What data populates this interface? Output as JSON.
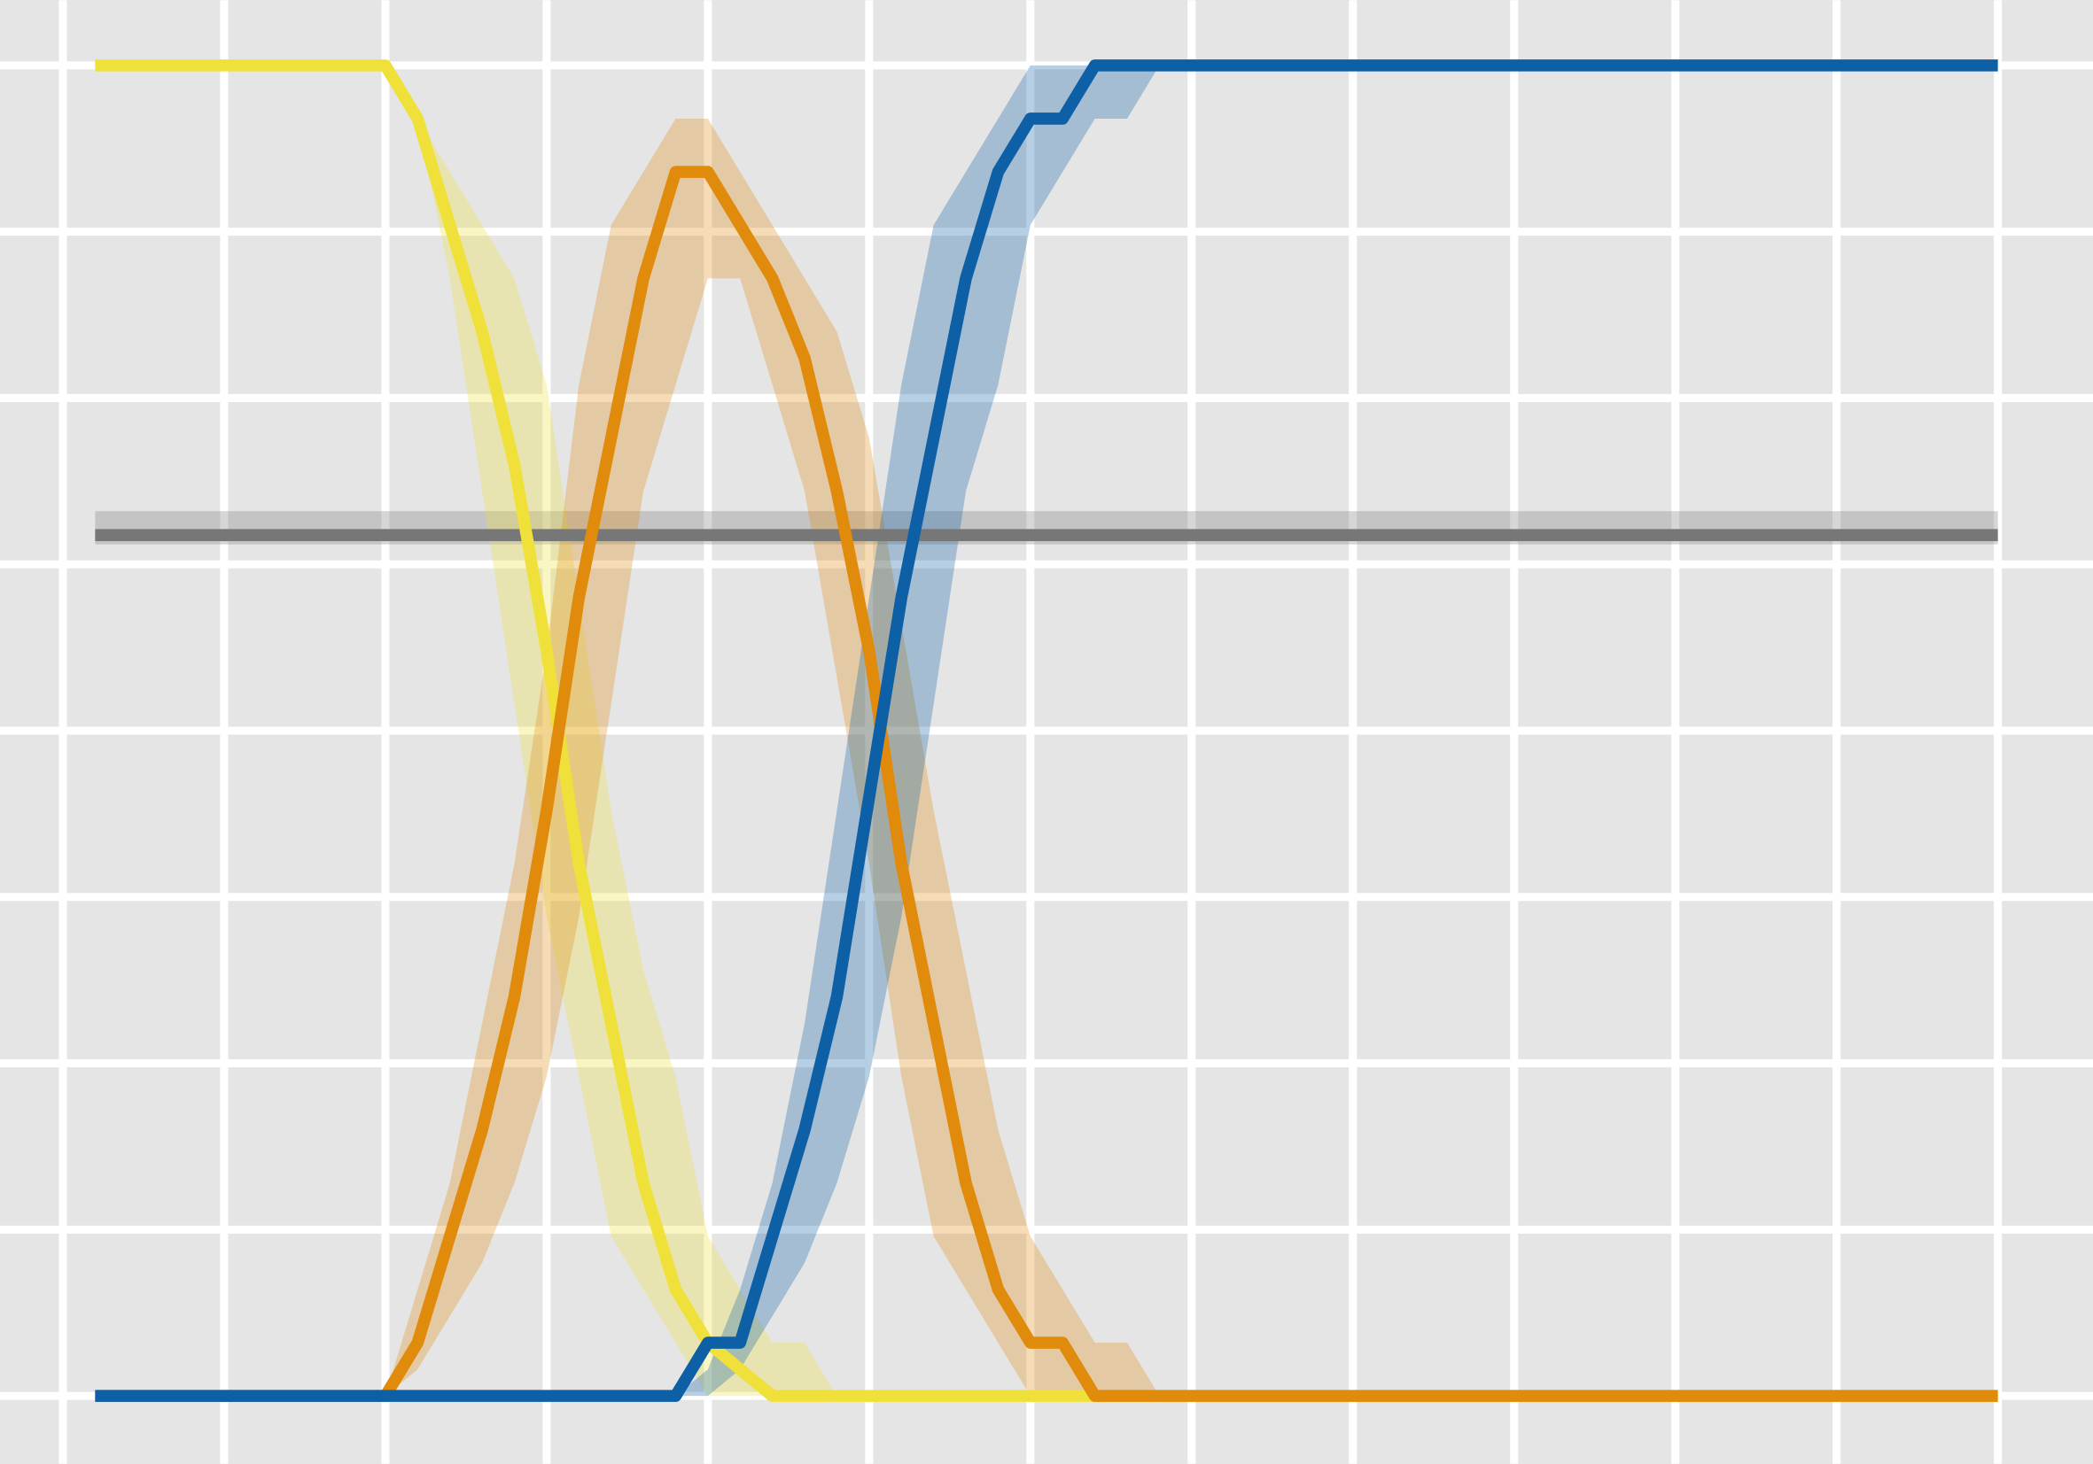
{
  "chart_data": {
    "type": "line",
    "grid": true,
    "background": "#e5e5e5",
    "xlim": [
      -0.39,
      12.59
    ],
    "ylim": [
      -0.051,
      1.049
    ],
    "xticks": [
      0,
      1,
      2,
      3,
      4,
      5,
      6,
      7,
      8,
      9,
      10,
      11,
      12
    ],
    "yticks": [
      0,
      0.125,
      0.25,
      0.375,
      0.5,
      0.625,
      0.75,
      0.875,
      1
    ],
    "x": [
      0.2,
      2.0,
      2.2,
      2.4,
      2.6,
      2.8,
      3.0,
      3.2,
      3.4,
      3.6,
      3.8,
      4.0,
      4.2,
      4.4,
      4.6,
      4.8,
      5.0,
      5.2,
      5.4,
      5.6,
      5.8,
      6.0,
      6.2,
      6.4,
      6.6,
      6.8,
      12
    ],
    "series": [
      {
        "color": "#777777",
        "values": [
          0.647,
          0.647,
          0.647,
          0.647,
          0.647,
          0.647,
          0.647,
          0.647,
          0.647,
          0.647,
          0.647,
          0.647,
          0.647,
          0.647,
          0.647,
          0.647,
          0.647,
          0.647,
          0.647,
          0.647,
          0.647,
          0.647,
          0.647,
          0.647,
          0.647,
          0.647,
          0.647
        ],
        "upper": [
          0.665,
          0.665,
          0.665,
          0.665,
          0.665,
          0.665,
          0.665,
          0.665,
          0.665,
          0.665,
          0.665,
          0.665,
          0.665,
          0.665,
          0.665,
          0.665,
          0.665,
          0.665,
          0.665,
          0.665,
          0.665,
          0.665,
          0.665,
          0.665,
          0.665,
          0.665,
          0.665
        ],
        "lower": [
          0.64,
          0.64,
          0.64,
          0.64,
          0.64,
          0.64,
          0.64,
          0.64,
          0.64,
          0.64,
          0.64,
          0.64,
          0.64,
          0.64,
          0.64,
          0.64,
          0.64,
          0.64,
          0.64,
          0.64,
          0.64,
          0.64,
          0.64,
          0.64,
          0.64,
          0.64,
          0.64
        ]
      },
      {
        "color": "#efe03a",
        "values": [
          1,
          1,
          0.96,
          0.88,
          0.8,
          0.7,
          0.56,
          0.4,
          0.28,
          0.16,
          0.08,
          0.04,
          0.02,
          0,
          0,
          0,
          0,
          0,
          0,
          0,
          0,
          0,
          0,
          0,
          0,
          0,
          0
        ],
        "upper": [
          1,
          1,
          0.96,
          0.92,
          0.88,
          0.84,
          0.76,
          0.6,
          0.44,
          0.32,
          0.24,
          0.12,
          0.08,
          0.04,
          0.04,
          0,
          0,
          0,
          0,
          0,
          0,
          0,
          0,
          0,
          0,
          0,
          0
        ],
        "lower": [
          1,
          1,
          0.96,
          0.84,
          0.68,
          0.52,
          0.36,
          0.24,
          0.12,
          0.08,
          0.04,
          0,
          0,
          0,
          0,
          0,
          0,
          0,
          0,
          0,
          0,
          0,
          0,
          0,
          0,
          0,
          0
        ]
      },
      {
        "color": "#e08b0c",
        "values": [
          0,
          0,
          0.04,
          0.12,
          0.2,
          0.3,
          0.44,
          0.6,
          0.72,
          0.84,
          0.92,
          0.92,
          0.88,
          0.84,
          0.78,
          0.68,
          0.56,
          0.4,
          0.28,
          0.16,
          0.08,
          0.04,
          0.04,
          0,
          0,
          0,
          0
        ],
        "upper": [
          0,
          0,
          0.08,
          0.16,
          0.28,
          0.4,
          0.56,
          0.76,
          0.88,
          0.92,
          0.96,
          0.96,
          0.92,
          0.88,
          0.84,
          0.8,
          0.72,
          0.58,
          0.44,
          0.32,
          0.2,
          0.12,
          0.08,
          0.04,
          0.04,
          0,
          0
        ],
        "lower": [
          0,
          0,
          0.02,
          0.06,
          0.1,
          0.16,
          0.24,
          0.36,
          0.52,
          0.68,
          0.76,
          0.84,
          0.84,
          0.76,
          0.68,
          0.54,
          0.4,
          0.24,
          0.12,
          0.08,
          0.04,
          0,
          0,
          0,
          0,
          0,
          0
        ]
      },
      {
        "color": "#0d5fa6",
        "values": [
          0,
          0,
          0,
          0,
          0,
          0,
          0,
          0,
          0,
          0,
          0,
          0.04,
          0.04,
          0.12,
          0.2,
          0.3,
          0.45,
          0.6,
          0.72,
          0.84,
          0.92,
          0.96,
          0.96,
          1,
          1,
          1,
          1
        ],
        "upper": [
          0,
          0,
          0,
          0,
          0,
          0,
          0,
          0,
          0,
          0,
          0,
          0.02,
          0.08,
          0.16,
          0.28,
          0.44,
          0.6,
          0.76,
          0.88,
          0.92,
          0.96,
          1,
          1,
          1,
          1,
          1,
          1
        ],
        "lower": [
          0,
          0,
          0,
          0,
          0,
          0,
          0,
          0,
          0,
          0,
          0,
          0,
          0.02,
          0.06,
          0.1,
          0.16,
          0.24,
          0.36,
          0.52,
          0.68,
          0.76,
          0.88,
          0.92,
          0.96,
          0.96,
          1,
          1
        ]
      }
    ]
  }
}
